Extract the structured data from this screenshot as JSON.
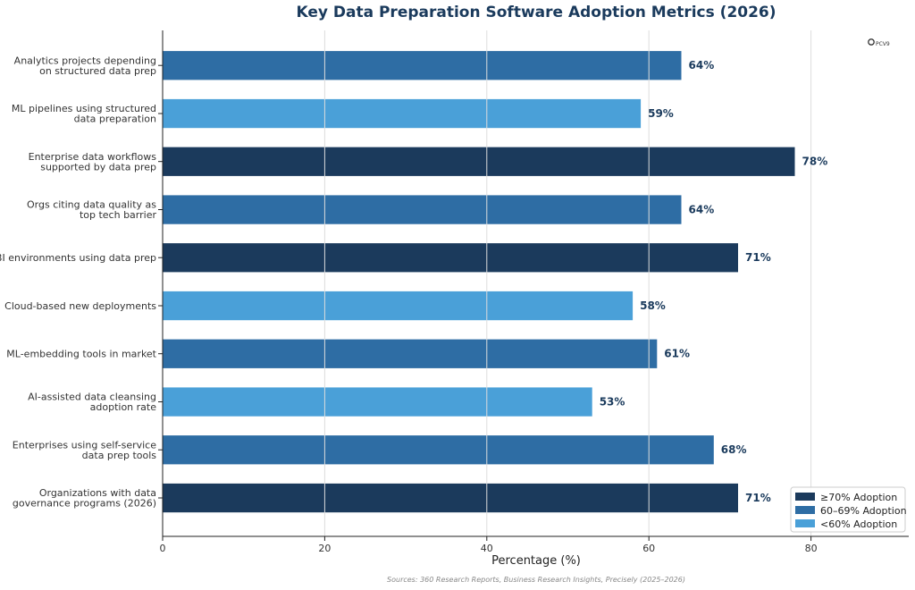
{
  "chart_data": {
    "type": "bar",
    "orientation": "horizontal",
    "title": "Key Data Preparation Software Adoption Metrics (2026)",
    "xlabel": "Percentage (%)",
    "xlim": [
      0,
      92
    ],
    "xticks": [
      0,
      20,
      40,
      60,
      80
    ],
    "grid": "vertical",
    "categories": [
      [
        "Analytics projects depending",
        "on structured data prep"
      ],
      [
        "ML pipelines using structured",
        "data preparation"
      ],
      [
        "Enterprise data workflows",
        "supported by data prep"
      ],
      [
        "Orgs citing data quality as",
        "top tech barrier"
      ],
      [
        "BI environments using data prep"
      ],
      [
        "Cloud-based new deployments"
      ],
      [
        "ML-embedding tools in market"
      ],
      [
        "AI-assisted data cleansing",
        "adoption rate"
      ],
      [
        "Enterprises using self-service",
        "data prep tools"
      ],
      [
        "Organizations with data",
        "governance programs (2026)"
      ]
    ],
    "values": [
      64,
      59,
      78,
      64,
      71,
      58,
      61,
      53,
      68,
      71
    ],
    "value_labels": [
      "64%",
      "59%",
      "78%",
      "64%",
      "71%",
      "58%",
      "61%",
      "53%",
      "68%",
      "71%"
    ],
    "legend": {
      "placement": "bottom-right",
      "entries": [
        {
          "label": "≥70% Adoption",
          "color": "#1b3a5c"
        },
        {
          "label": "60–69% Adoption",
          "color": "#2e6da4"
        },
        {
          "label": "<60% Adoption",
          "color": "#4aa0d8"
        }
      ]
    },
    "source_note": "Sources: 360 Research Reports, Business Research Insights, Precisely (2025–2026)",
    "logo_text": "PCV9"
  }
}
